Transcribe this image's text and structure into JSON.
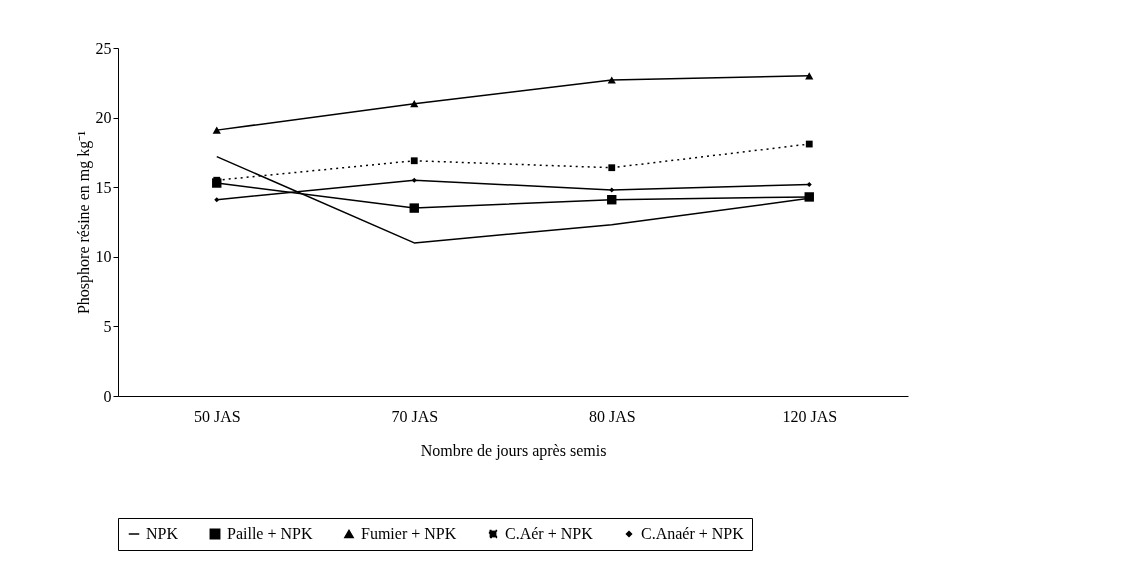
{
  "chart_data": {
    "type": "line",
    "xlabel": "Nombre de jours après semis",
    "ylabel": "Phosphore résine en mg kg⁻¹",
    "categories": [
      "50 JAS",
      "70 JAS",
      "80 JAS",
      "120 JAS"
    ],
    "series": [
      {
        "name": "NPK",
        "color": "#000000",
        "marker": "none",
        "line_style": "solid",
        "values": [
          17.2,
          11.0,
          12.3,
          14.2
        ]
      },
      {
        "name": "Paille + NPK",
        "color": "#000000",
        "marker": "square",
        "line_style": "solid",
        "values": [
          15.3,
          13.5,
          14.1,
          14.3
        ]
      },
      {
        "name": "Fumier + NPK",
        "color": "#000000",
        "marker": "triangle",
        "line_style": "solid",
        "values": [
          19.1,
          21.0,
          22.7,
          23.0
        ]
      },
      {
        "name": "C.Aér + NPK",
        "color": "#000000",
        "marker": "square",
        "line_style": "dotted",
        "values": [
          15.5,
          16.9,
          16.4,
          18.1
        ]
      },
      {
        "name": "C.Anaér + NPK",
        "color": "#000000",
        "marker": "diamond",
        "line_style": "solid",
        "values": [
          14.1,
          15.5,
          14.8,
          15.2
        ]
      }
    ],
    "ylim": [
      0,
      25
    ],
    "yticks": [
      0,
      5,
      10,
      15,
      20,
      25
    ],
    "grid": false,
    "legend": "bottom"
  }
}
